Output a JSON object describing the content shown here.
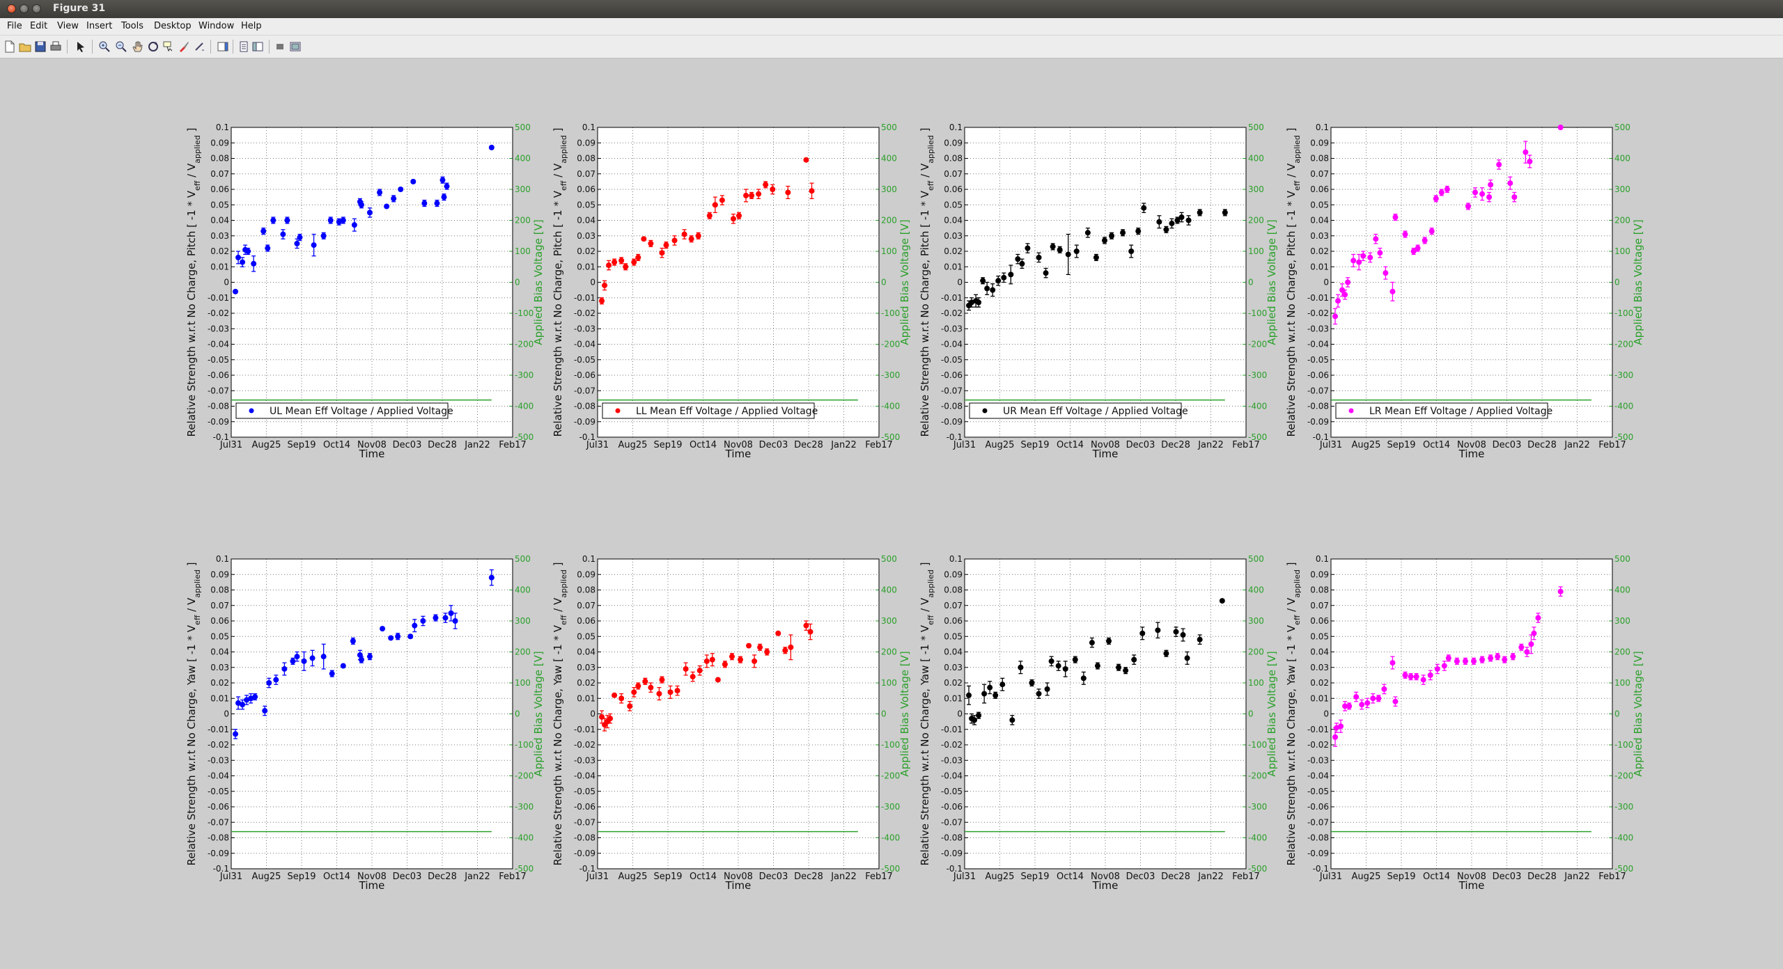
{
  "window": {
    "title": "Figure 31"
  },
  "menu": [
    "File",
    "Edit",
    "View",
    "Insert",
    "Tools",
    "Desktop",
    "Window",
    "Help"
  ],
  "toolbar": [
    "new-figure-icon",
    "open-file-icon",
    "save-icon",
    "print-icon",
    "edit-plot-arrow-icon",
    "zoom-in-icon",
    "zoom-out-icon",
    "pan-hand-icon",
    "rotate-3d-icon",
    "data-cursor-icon",
    "brush-icon",
    "link-plot-icon",
    "insert-colorbar-icon",
    "insert-legend-icon",
    "hide-plot-tools-icon",
    "show-plot-tools-icon"
  ],
  "colors": {
    "UL": "#0000ff",
    "LL": "#ff0000",
    "UR": "#000000",
    "LR": "#ff00ff",
    "bias": "#2aa02a"
  },
  "axes_text": {
    "xlabel": "Time",
    "ylabel_pitch": "Relative Strength w.r.t No Charge, Pitch [ -1 * V",
    "ylabel_yaw": "Relative Strength w.r.t No Charge, Yaw [ -1 * V",
    "ylabel_eff": "eff",
    "ylabel_mid": " / V",
    "ylabel_applied": "applied",
    "ylabel_end": " ]",
    "y2label": "Applied Bias Voltage [V]",
    "xticks": [
      "Jul31",
      "Aug25",
      "Sep19",
      "Oct14",
      "Nov08",
      "Dec03",
      "Dec28",
      "Jan22",
      "Feb17"
    ],
    "yticks": [
      "0.1",
      "0.09",
      "0.08",
      "0.07",
      "0.06",
      "0.05",
      "0.04",
      "0.03",
      "0.02",
      "0.01",
      "0",
      "-0.01",
      "-0.02",
      "-0.03",
      "-0.04",
      "-0.05",
      "-0.06",
      "-0.07",
      "-0.08",
      "-0.09",
      "-0.1"
    ],
    "y2ticks": [
      "500",
      "400",
      "300",
      "200",
      "100",
      "0",
      "-100",
      "-200",
      "-300",
      "-400",
      "-500"
    ]
  },
  "chart_data": [
    {
      "type": "scatter",
      "panel": "UL-pitch",
      "legend": "UL Mean Eff Voltage / Applied Voltage",
      "color": "#0000ff",
      "xlim": [
        0,
        201
      ],
      "ylim": [
        -0.1,
        0.1
      ],
      "y2lim": [
        -500,
        500
      ],
      "legend_pos": "bottom",
      "x": [
        3,
        5,
        8,
        10,
        12,
        16,
        23,
        26,
        30,
        37,
        40,
        47,
        49,
        59,
        66,
        71,
        77,
        80,
        88,
        92,
        93,
        99,
        106,
        111,
        116,
        121,
        130,
        138,
        147,
        151,
        152,
        154,
        186
      ],
      "y": [
        -0.006,
        0.016,
        0.013,
        0.021,
        0.02,
        0.012,
        0.033,
        0.022,
        0.04,
        0.031,
        0.04,
        0.025,
        0.029,
        0.024,
        0.03,
        0.04,
        0.039,
        0.04,
        0.037,
        0.052,
        0.05,
        0.045,
        0.058,
        0.049,
        0.054,
        0.06,
        0.065,
        0.051,
        0.051,
        0.066,
        0.055,
        0.062,
        0.087
      ],
      "err": [
        0.001,
        0.004,
        0.003,
        0.003,
        0.002,
        0.005,
        0.002,
        0.002,
        0.002,
        0.003,
        0.002,
        0.003,
        0.002,
        0.007,
        0.002,
        0.002,
        0.002,
        0.002,
        0.004,
        0.002,
        0.002,
        0.003,
        0.002,
        0.001,
        0.002,
        0.001,
        0.001,
        0.002,
        0.002,
        0.002,
        0.002,
        0.002,
        0.001
      ],
      "bias": [
        [
          0,
          -380
        ],
        [
          186,
          -380
        ]
      ]
    },
    {
      "type": "scatter",
      "panel": "LL-pitch",
      "legend": "LL Mean Eff Voltage / Applied Voltage",
      "color": "#ff0000",
      "xlim": [
        0,
        201
      ],
      "ylim": [
        -0.1,
        0.1
      ],
      "y2lim": [
        -500,
        500
      ],
      "legend_pos": "bottom",
      "x": [
        3,
        5,
        8,
        12,
        17,
        20,
        26,
        29,
        33,
        38,
        46,
        49,
        55,
        62,
        67,
        72,
        80,
        84,
        89,
        97,
        101,
        106,
        110,
        115,
        120,
        125,
        136,
        149,
        153
      ],
      "y": [
        -0.012,
        -0.002,
        0.011,
        0.013,
        0.014,
        0.01,
        0.013,
        0.016,
        0.028,
        0.025,
        0.019,
        0.024,
        0.027,
        0.031,
        0.028,
        0.03,
        0.043,
        0.05,
        0.053,
        0.041,
        0.043,
        0.056,
        0.056,
        0.057,
        0.063,
        0.06,
        0.058,
        0.079,
        0.059
      ],
      "err": [
        0.002,
        0.003,
        0.003,
        0.002,
        0.002,
        0.002,
        0.002,
        0.002,
        0.001,
        0.002,
        0.003,
        0.002,
        0.003,
        0.003,
        0.002,
        0.002,
        0.002,
        0.005,
        0.003,
        0.003,
        0.002,
        0.004,
        0.002,
        0.003,
        0.002,
        0.003,
        0.004,
        0.001,
        0.005
      ],
      "bias": [
        [
          0,
          -380
        ],
        [
          186,
          -380
        ]
      ]
    },
    {
      "type": "scatter",
      "panel": "UR-pitch",
      "legend": "UR Mean Eff Voltage / Applied Voltage",
      "color": "#000000",
      "xlim": [
        0,
        201
      ],
      "ylim": [
        -0.1,
        0.1
      ],
      "y2lim": [
        -500,
        500
      ],
      "legend_pos": "bottom",
      "x": [
        3,
        5,
        8,
        10,
        13,
        16,
        20,
        24,
        28,
        33,
        38,
        41,
        45,
        53,
        58,
        63,
        68,
        74,
        80,
        88,
        94,
        100,
        105,
        113,
        119,
        124,
        128,
        139,
        144,
        148,
        152,
        155,
        160,
        168,
        186
      ],
      "y": [
        -0.015,
        -0.013,
        -0.012,
        -0.013,
        0.001,
        -0.004,
        -0.005,
        0.001,
        0.003,
        0.005,
        0.015,
        0.012,
        0.022,
        0.016,
        0.006,
        0.023,
        0.021,
        0.018,
        0.02,
        0.032,
        0.016,
        0.027,
        0.03,
        0.032,
        0.02,
        0.033,
        0.048,
        0.039,
        0.034,
        0.038,
        0.04,
        0.042,
        0.04,
        0.045,
        0.045
      ],
      "err": [
        0.003,
        0.003,
        0.004,
        0.003,
        0.002,
        0.004,
        0.004,
        0.003,
        0.003,
        0.006,
        0.003,
        0.003,
        0.003,
        0.003,
        0.003,
        0.002,
        0.002,
        0.013,
        0.004,
        0.003,
        0.002,
        0.002,
        0.002,
        0.002,
        0.004,
        0.002,
        0.003,
        0.004,
        0.002,
        0.003,
        0.002,
        0.003,
        0.003,
        0.002,
        0.002
      ],
      "bias": [
        [
          0,
          -380
        ],
        [
          186,
          -380
        ]
      ]
    },
    {
      "type": "scatter",
      "panel": "LR-pitch",
      "legend": "LR Mean Eff Voltage / Applied Voltage",
      "color": "#ff00ff",
      "xlim": [
        0,
        201
      ],
      "ylim": [
        -0.1,
        0.1
      ],
      "y2lim": [
        -500,
        500
      ],
      "legend_pos": "bottom",
      "x": [
        3,
        5,
        8,
        10,
        12,
        16,
        20,
        23,
        28,
        32,
        35,
        39,
        44,
        46,
        53,
        59,
        62,
        67,
        72,
        75,
        79,
        83,
        98,
        103,
        108,
        113,
        114,
        120,
        128,
        131,
        139,
        142,
        164
      ],
      "y": [
        -0.022,
        -0.012,
        -0.005,
        -0.008,
        0.0,
        0.014,
        0.013,
        0.017,
        0.016,
        0.028,
        0.019,
        0.006,
        -0.006,
        0.042,
        0.031,
        0.02,
        0.022,
        0.027,
        0.033,
        0.054,
        0.058,
        0.06,
        0.049,
        0.058,
        0.057,
        0.055,
        0.063,
        0.076,
        0.064,
        0.055,
        0.084,
        0.078,
        0.1
      ],
      "err": [
        0.005,
        0.004,
        0.004,
        0.003,
        0.003,
        0.004,
        0.005,
        0.003,
        0.003,
        0.003,
        0.003,
        0.004,
        0.006,
        0.002,
        0.002,
        0.002,
        0.002,
        0.002,
        0.002,
        0.002,
        0.002,
        0.002,
        0.002,
        0.003,
        0.004,
        0.003,
        0.003,
        0.003,
        0.004,
        0.003,
        0.007,
        0.004,
        0.001
      ],
      "bias": [
        [
          0,
          -380
        ],
        [
          186,
          -380
        ]
      ]
    },
    {
      "type": "scatter",
      "panel": "UL-yaw",
      "color": "#0000ff",
      "xlim": [
        0,
        201
      ],
      "ylim": [
        -0.1,
        0.1
      ],
      "y2lim": [
        -500,
        500
      ],
      "x": [
        3,
        5,
        8,
        11,
        14,
        17,
        24,
        27,
        32,
        38,
        44,
        47,
        52,
        58,
        66,
        72,
        80,
        87,
        92,
        93,
        99,
        108,
        114,
        119,
        128,
        131,
        137,
        146,
        153,
        157,
        160,
        186
      ],
      "y": [
        -0.013,
        0.007,
        0.006,
        0.009,
        0.01,
        0.011,
        0.002,
        0.02,
        0.022,
        0.029,
        0.034,
        0.037,
        0.034,
        0.036,
        0.037,
        0.026,
        0.031,
        0.047,
        0.038,
        0.035,
        0.037,
        0.055,
        0.049,
        0.05,
        0.05,
        0.057,
        0.06,
        0.062,
        0.062,
        0.065,
        0.06,
        0.088
      ],
      "err": [
        0.003,
        0.004,
        0.003,
        0.003,
        0.003,
        0.002,
        0.003,
        0.003,
        0.003,
        0.004,
        0.002,
        0.003,
        0.006,
        0.005,
        0.008,
        0.002,
        0.001,
        0.002,
        0.003,
        0.002,
        0.002,
        0.001,
        0.001,
        0.002,
        0.001,
        0.004,
        0.003,
        0.002,
        0.003,
        0.005,
        0.005,
        0.005
      ],
      "bias": [
        [
          0,
          -380
        ],
        [
          186,
          -380
        ]
      ]
    },
    {
      "type": "scatter",
      "panel": "LL-yaw",
      "color": "#ff0000",
      "xlim": [
        0,
        201
      ],
      "ylim": [
        -0.1,
        0.1
      ],
      "y2lim": [
        -500,
        500
      ],
      "x": [
        3,
        5,
        7,
        9,
        12,
        17,
        23,
        26,
        29,
        34,
        38,
        44,
        46,
        52,
        57,
        63,
        68,
        73,
        78,
        82,
        86,
        91,
        96,
        102,
        108,
        112,
        116,
        121,
        129,
        134,
        138,
        149,
        152
      ],
      "y": [
        -0.002,
        -0.007,
        -0.005,
        -0.003,
        0.012,
        0.01,
        0.005,
        0.014,
        0.018,
        0.021,
        0.017,
        0.013,
        0.022,
        0.014,
        0.015,
        0.029,
        0.024,
        0.028,
        0.034,
        0.035,
        0.022,
        0.032,
        0.037,
        0.035,
        0.044,
        0.034,
        0.043,
        0.04,
        0.052,
        0.041,
        0.043,
        0.057,
        0.053
      ],
      "err": [
        0.004,
        0.004,
        0.004,
        0.003,
        0.001,
        0.003,
        0.003,
        0.003,
        0.002,
        0.002,
        0.003,
        0.004,
        0.002,
        0.004,
        0.003,
        0.004,
        0.003,
        0.003,
        0.004,
        0.004,
        0.001,
        0.002,
        0.002,
        0.002,
        0.001,
        0.004,
        0.002,
        0.002,
        0.001,
        0.002,
        0.008,
        0.003,
        0.005
      ],
      "bias": [
        [
          0,
          -380
        ],
        [
          186,
          -380
        ]
      ]
    },
    {
      "type": "scatter",
      "panel": "UR-yaw",
      "color": "#000000",
      "xlim": [
        0,
        201
      ],
      "ylim": [
        -0.1,
        0.1
      ],
      "y2lim": [
        -500,
        500
      ],
      "x": [
        3,
        5,
        7,
        10,
        14,
        18,
        22,
        27,
        34,
        40,
        48,
        53,
        59,
        62,
        67,
        72,
        79,
        85,
        91,
        95,
        103,
        110,
        115,
        121,
        127,
        138,
        144,
        151,
        156,
        159,
        168,
        184
      ],
      "y": [
        0.012,
        -0.003,
        -0.004,
        -0.001,
        0.013,
        0.017,
        0.012,
        0.019,
        -0.004,
        0.03,
        0.02,
        0.013,
        0.016,
        0.034,
        0.031,
        0.029,
        0.035,
        0.023,
        0.046,
        0.031,
        0.047,
        0.03,
        0.028,
        0.035,
        0.052,
        0.054,
        0.039,
        0.053,
        0.051,
        0.036,
        0.048,
        0.073
      ],
      "err": [
        0.006,
        0.003,
        0.003,
        0.002,
        0.006,
        0.004,
        0.002,
        0.004,
        0.003,
        0.004,
        0.002,
        0.003,
        0.004,
        0.003,
        0.003,
        0.005,
        0.002,
        0.004,
        0.003,
        0.002,
        0.002,
        0.002,
        0.002,
        0.003,
        0.004,
        0.005,
        0.002,
        0.003,
        0.004,
        0.004,
        0.003,
        0.001
      ],
      "bias": [
        [
          0,
          -380
        ],
        [
          186,
          -380
        ]
      ]
    },
    {
      "type": "scatter",
      "panel": "LR-yaw",
      "color": "#ff00ff",
      "xlim": [
        0,
        201
      ],
      "ylim": [
        -0.1,
        0.1
      ],
      "y2lim": [
        -500,
        500
      ],
      "x": [
        3,
        4,
        7,
        10,
        13,
        18,
        22,
        26,
        30,
        34,
        38,
        44,
        46,
        53,
        57,
        61,
        66,
        71,
        76,
        81,
        84,
        90,
        96,
        102,
        108,
        114,
        119,
        124,
        130,
        136,
        140,
        143,
        145,
        148,
        164
      ],
      "y": [
        -0.015,
        -0.009,
        -0.008,
        0.005,
        0.005,
        0.011,
        0.006,
        0.007,
        0.01,
        0.01,
        0.016,
        0.033,
        0.008,
        0.025,
        0.024,
        0.024,
        0.022,
        0.025,
        0.029,
        0.031,
        0.036,
        0.034,
        0.034,
        0.034,
        0.035,
        0.036,
        0.037,
        0.035,
        0.037,
        0.043,
        0.04,
        0.045,
        0.052,
        0.062,
        0.079
      ],
      "err": [
        0.006,
        0.003,
        0.004,
        0.003,
        0.002,
        0.003,
        0.003,
        0.003,
        0.003,
        0.002,
        0.003,
        0.004,
        0.003,
        0.002,
        0.002,
        0.002,
        0.003,
        0.003,
        0.003,
        0.003,
        0.002,
        0.002,
        0.002,
        0.002,
        0.002,
        0.002,
        0.002,
        0.002,
        0.002,
        0.002,
        0.003,
        0.006,
        0.004,
        0.003,
        0.003
      ],
      "bias": [
        [
          0,
          -380
        ],
        [
          186,
          -380
        ]
      ]
    }
  ]
}
